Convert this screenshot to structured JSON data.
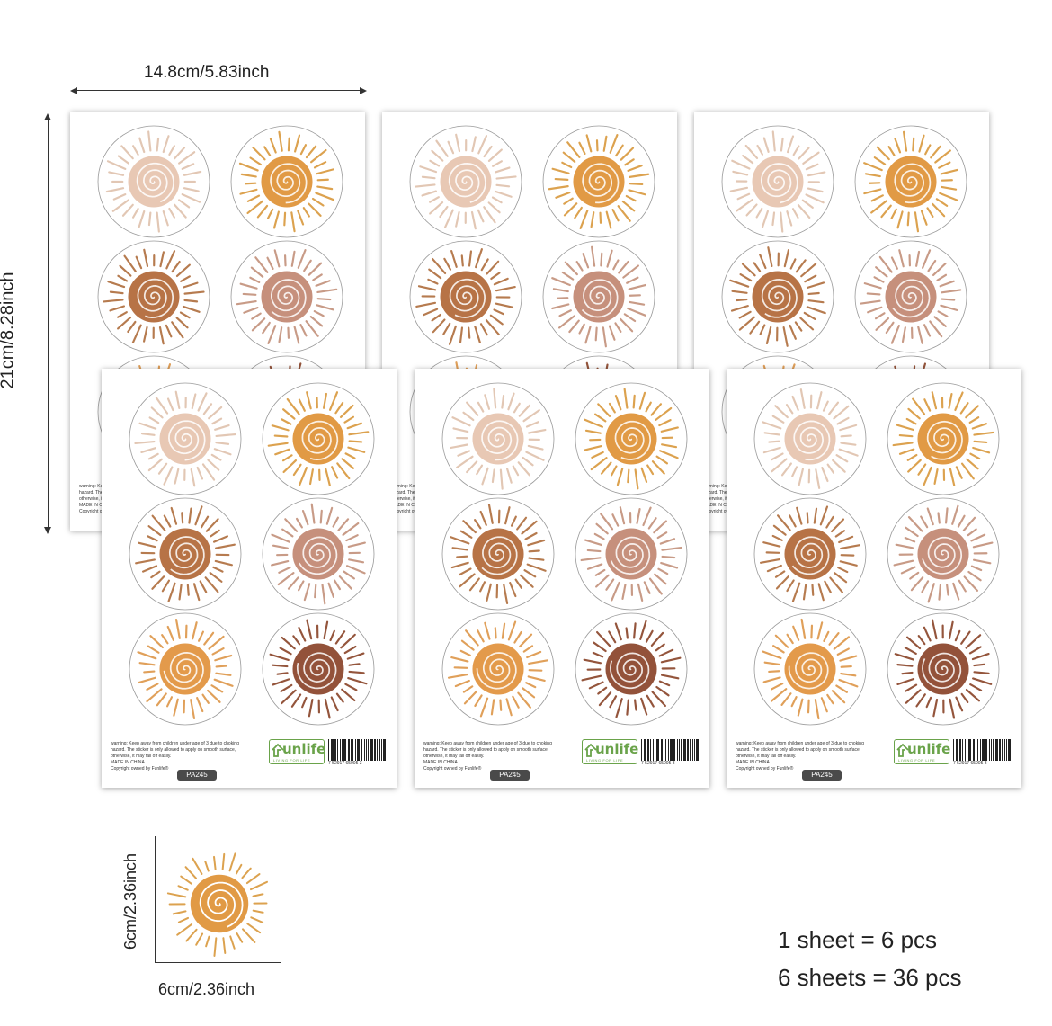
{
  "dimensions": {
    "sheet_width": "14.8cm/5.83inch",
    "sheet_height": "21cm/8.28inch",
    "sticker_height": "6cm/2.36inch",
    "sticker_width": "6cm/2.36inch"
  },
  "sticker_colors": [
    "#e8c8b4",
    "#e19a45",
    "#b77346",
    "#c6907c",
    "#e39a4b",
    "#93523a"
  ],
  "ray_colors": [
    "#e2c7b4",
    "#dca24f",
    "#b67b4f",
    "#c89b87",
    "#e0a05a",
    "#94553c"
  ],
  "sheet_footer": {
    "warning_lines": [
      "warning: Keep away from children under age of 3 due to choking",
      "hazard. The sticker is only allowed to apply on smooth surface,",
      "otherwise, it may fall off easily.",
      "MADE IN CHINA",
      "Copyright owned by Funlife®"
    ],
    "product_code": "PA245",
    "brand": "unlife",
    "brand_tagline": "LIVING FOR LIFE",
    "barcode_number": "7  52917  65005  3"
  },
  "summary": {
    "line1": "1 sheet = 6 pcs",
    "line2": "6 sheets = 36 pcs"
  }
}
